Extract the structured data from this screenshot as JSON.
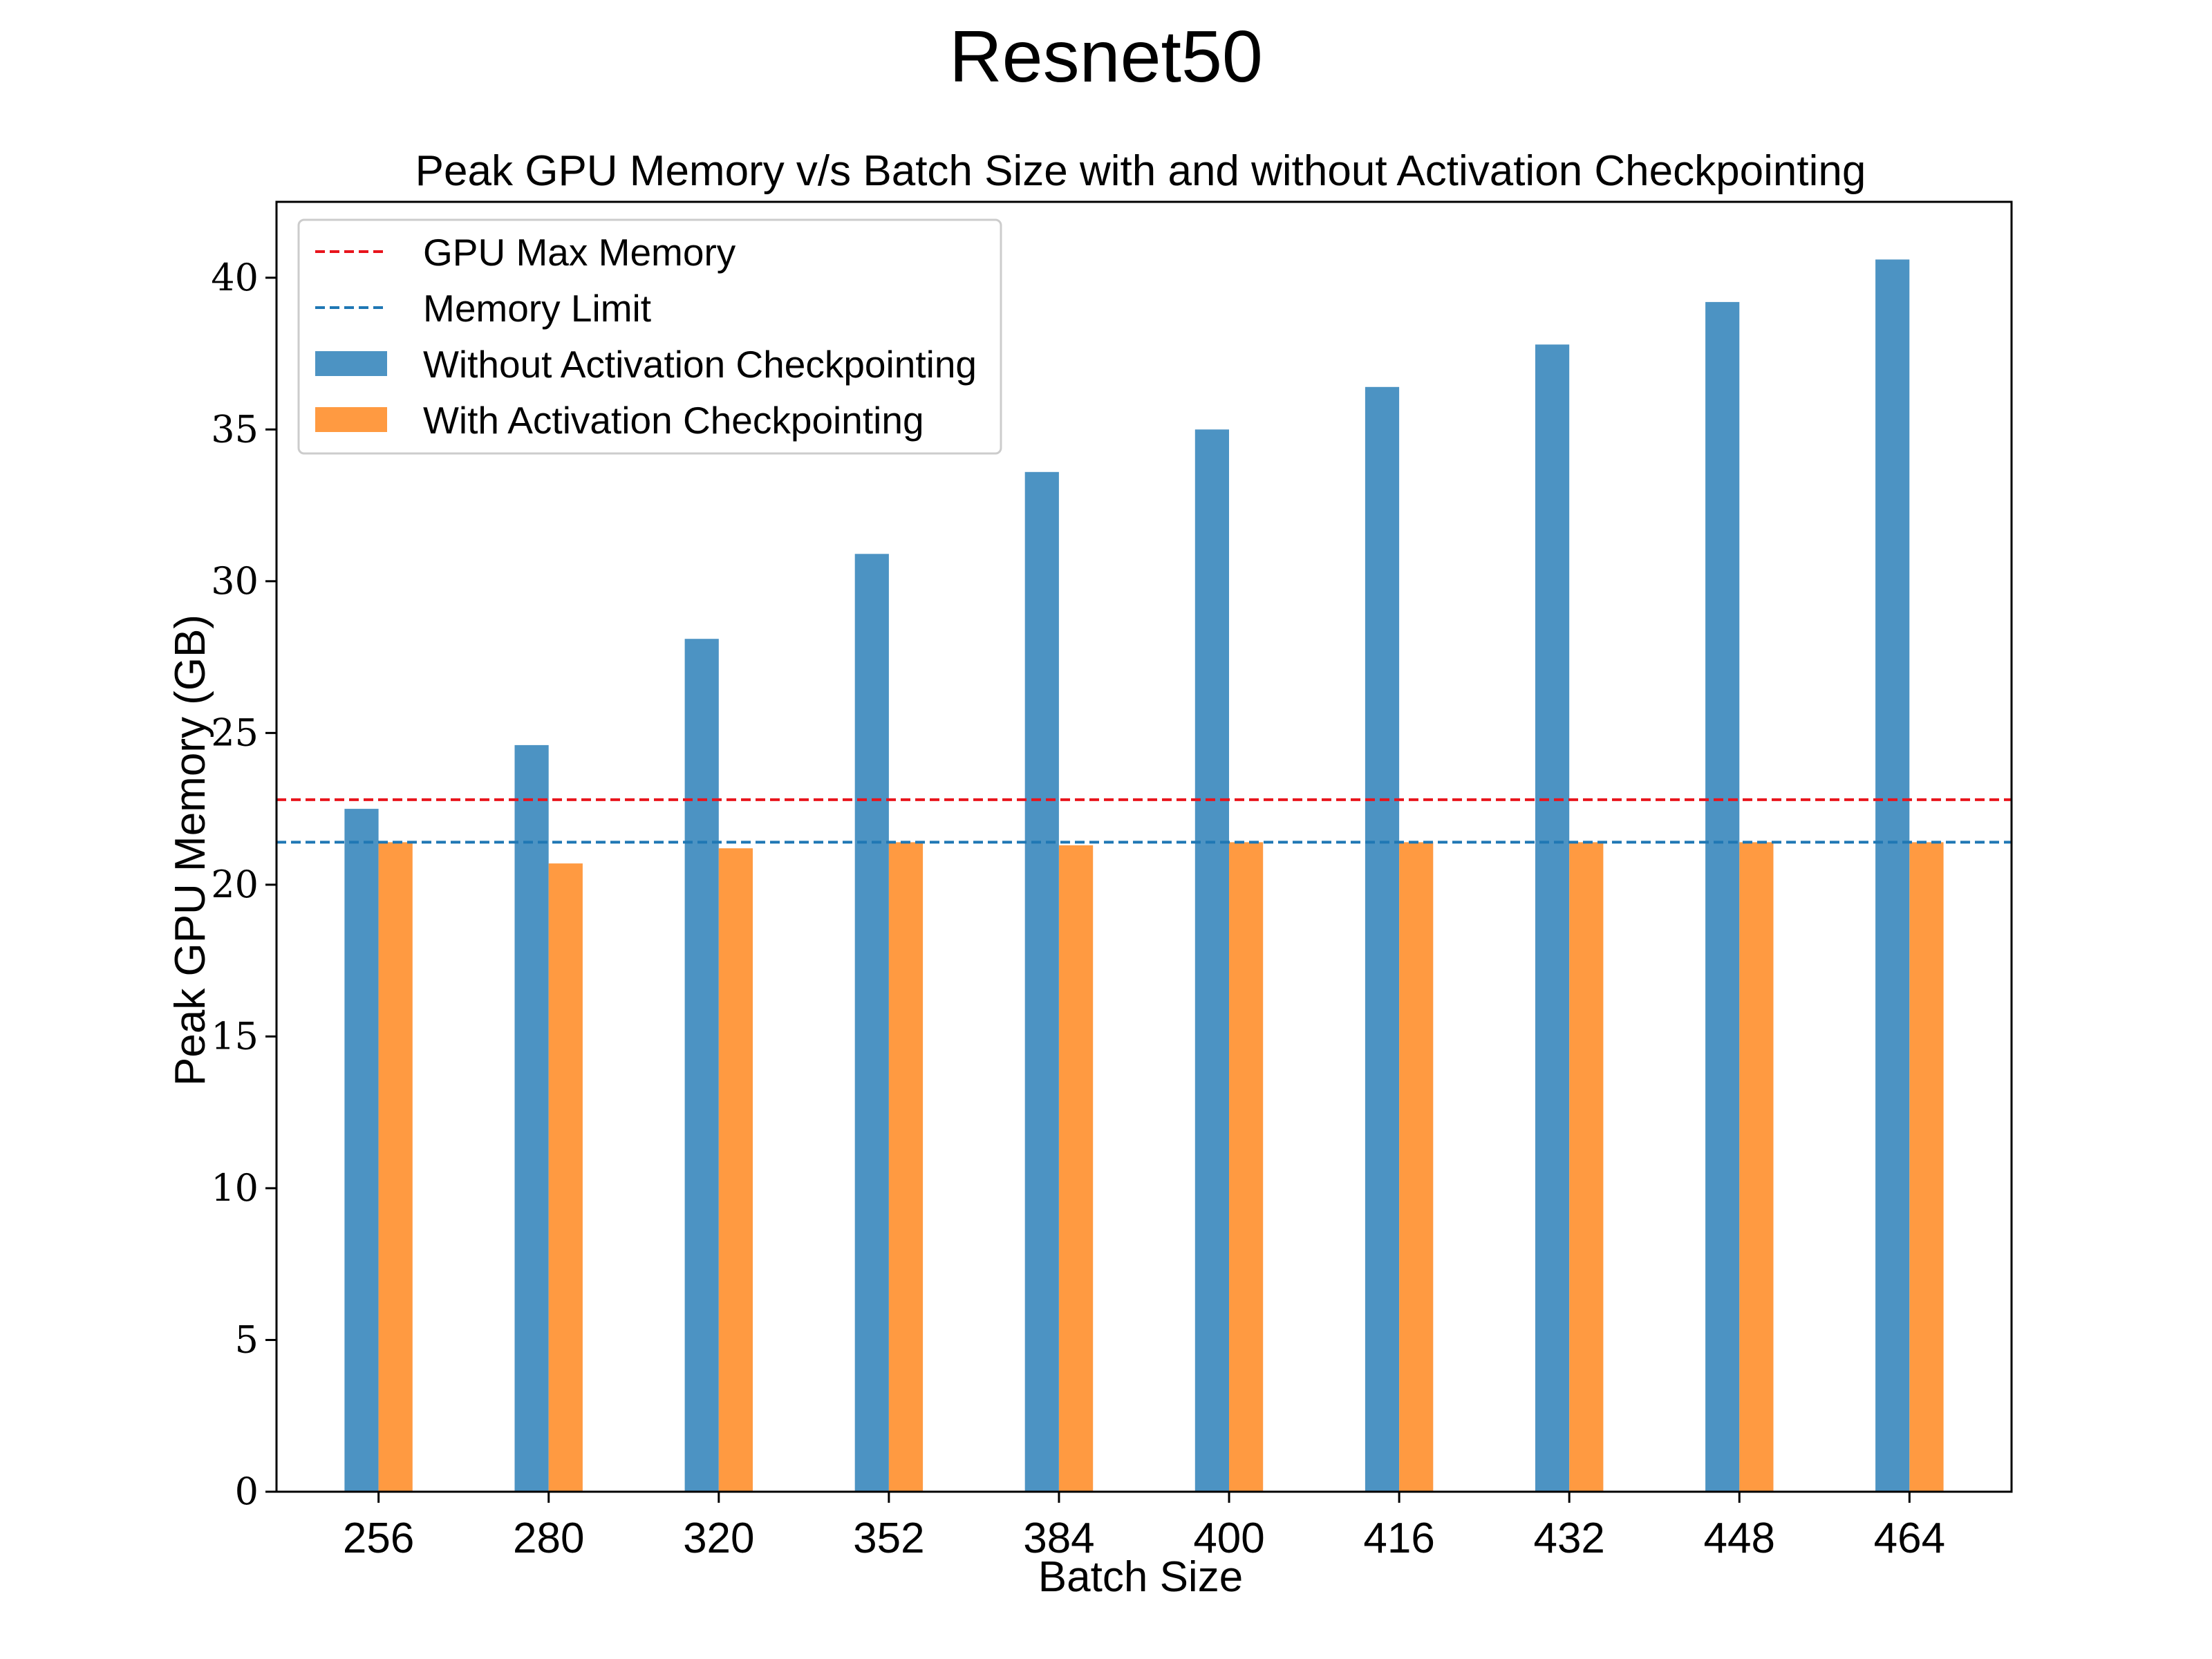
{
  "chart_data": {
    "type": "bar",
    "suptitle": "Resnet50",
    "title": "Peak GPU Memory v/s Batch Size with and without Activation Checkpointing",
    "xlabel": "Batch Size",
    "ylabel": "Peak GPU Memory (GB)",
    "ylim": [
      0,
      42.5
    ],
    "yticks": [
      0,
      5,
      10,
      15,
      20,
      25,
      30,
      35,
      40
    ],
    "categories": [
      "256",
      "280",
      "320",
      "352",
      "384",
      "400",
      "416",
      "432",
      "448",
      "464"
    ],
    "series": [
      {
        "name": "Without Activation Checkpointing",
        "color": "#4C93C3",
        "values": [
          22.5,
          24.6,
          28.1,
          30.9,
          33.6,
          35.0,
          36.4,
          37.8,
          39.2,
          40.6
        ]
      },
      {
        "name": "With Activation Checkpointing",
        "color": "#FF9A41",
        "values": [
          21.4,
          20.7,
          21.2,
          21.4,
          21.3,
          21.4,
          21.4,
          21.4,
          21.4,
          21.4
        ]
      }
    ],
    "reference_lines": [
      {
        "name": "GPU Max Memory",
        "value": 22.8,
        "color": "#E8141C",
        "style": "dashed"
      },
      {
        "name": "Memory Limit",
        "value": 21.4,
        "color": "#1F77B4",
        "style": "dashed"
      }
    ],
    "legend": "top-left",
    "grid": false
  }
}
